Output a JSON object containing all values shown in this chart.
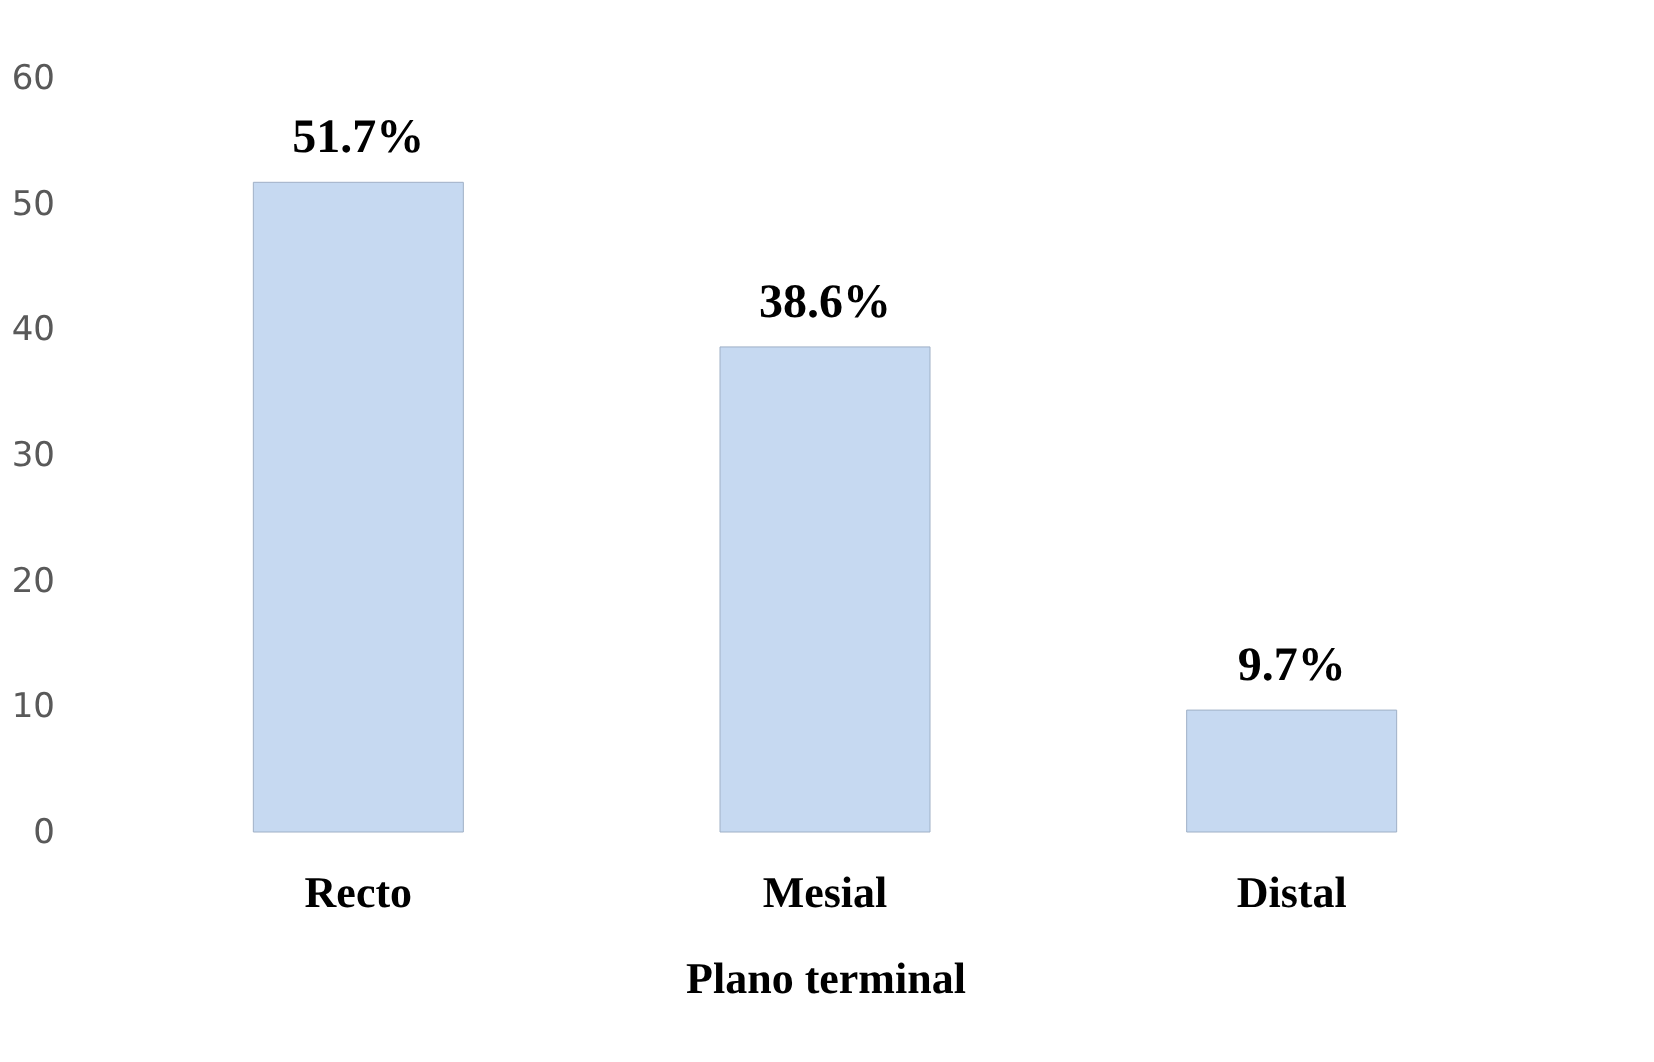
{
  "chart_data": {
    "type": "bar",
    "xlabel": "Plano terminal",
    "categories": [
      "Recto",
      "Mesial",
      "Distal"
    ],
    "values": [
      51.7,
      38.6,
      9.7
    ],
    "value_labels": [
      "51.7%",
      "38.6%",
      "9.7%"
    ],
    "color": "#c6d9f1",
    "ylim": [
      0,
      60
    ],
    "yticks": [
      0,
      10,
      20,
      30,
      40,
      50,
      60
    ],
    "grid": false
  }
}
